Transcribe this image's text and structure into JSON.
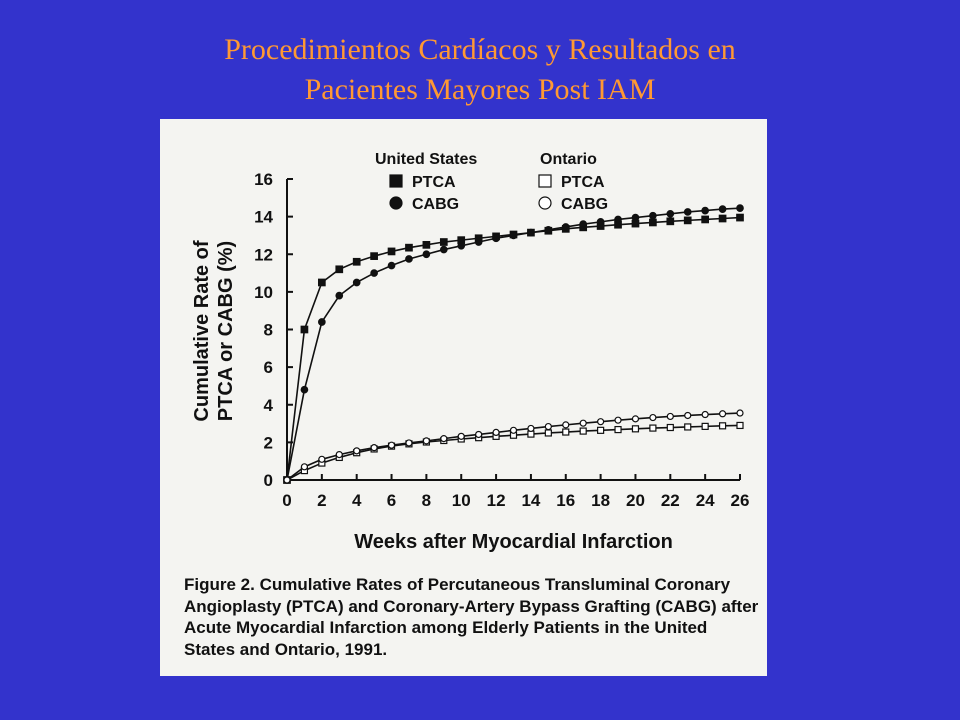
{
  "slide": {
    "title_line1": "Procedimientos Cardíacos y Resultados en",
    "title_line2": "Pacientes Mayores Post IAM"
  },
  "colors": {
    "background": "#3333cc",
    "title": "#ff9933",
    "panel": "#f4f4f1",
    "ink": "#111111"
  },
  "figure": {
    "caption_label": "Figure 2.",
    "caption_text": "Cumulative Rates of Percutaneous Transluminal Coronary Angioplasty (PTCA) and Coronary-Artery Bypass Grafting (CABG) after Acute Myocardial Infarction among Elderly Patients in the United States and Ontario, 1991."
  },
  "chart_data": {
    "type": "line",
    "xlabel": "Weeks after Myocardial Infarction",
    "ylabel_line1": "Cumulative Rate of",
    "ylabel_line2": "PTCA or CABG (%)",
    "xlim": [
      0,
      26
    ],
    "ylim": [
      0,
      16
    ],
    "xticks": [
      0,
      2,
      4,
      6,
      8,
      10,
      12,
      14,
      16,
      18,
      20,
      22,
      24,
      26
    ],
    "yticks": [
      0,
      2,
      4,
      6,
      8,
      10,
      12,
      14,
      16
    ],
    "grid": false,
    "legend": {
      "placement": "top-right",
      "group_us": "United States",
      "group_ontario": "Ontario"
    },
    "x": [
      0,
      1,
      2,
      3,
      4,
      5,
      6,
      7,
      8,
      9,
      10,
      11,
      12,
      13,
      14,
      15,
      16,
      17,
      18,
      19,
      20,
      21,
      22,
      23,
      24,
      25,
      26
    ],
    "series": [
      {
        "name": "PTCA",
        "group": "United States",
        "marker": "square",
        "filled": true,
        "values": [
          0,
          8.0,
          10.5,
          11.2,
          11.6,
          11.9,
          12.15,
          12.35,
          12.5,
          12.65,
          12.75,
          12.85,
          12.95,
          13.05,
          13.15,
          13.25,
          13.35,
          13.43,
          13.5,
          13.57,
          13.63,
          13.69,
          13.75,
          13.8,
          13.85,
          13.9,
          13.95
        ]
      },
      {
        "name": "CABG",
        "group": "United States",
        "marker": "circle",
        "filled": true,
        "values": [
          0,
          4.8,
          8.4,
          9.8,
          10.5,
          11.0,
          11.4,
          11.75,
          12.0,
          12.25,
          12.45,
          12.65,
          12.85,
          13.0,
          13.15,
          13.3,
          13.45,
          13.6,
          13.72,
          13.85,
          13.95,
          14.05,
          14.15,
          14.25,
          14.32,
          14.4,
          14.45
        ]
      },
      {
        "name": "PTCA",
        "group": "Ontario",
        "marker": "square",
        "filled": false,
        "values": [
          0,
          0.5,
          0.9,
          1.2,
          1.45,
          1.65,
          1.8,
          1.92,
          2.02,
          2.1,
          2.18,
          2.25,
          2.32,
          2.38,
          2.44,
          2.5,
          2.55,
          2.6,
          2.64,
          2.68,
          2.72,
          2.76,
          2.79,
          2.82,
          2.85,
          2.88,
          2.9
        ]
      },
      {
        "name": "CABG",
        "group": "Ontario",
        "marker": "circle",
        "filled": false,
        "values": [
          0,
          0.7,
          1.1,
          1.35,
          1.55,
          1.72,
          1.85,
          1.97,
          2.08,
          2.2,
          2.32,
          2.42,
          2.53,
          2.64,
          2.74,
          2.84,
          2.93,
          3.02,
          3.1,
          3.18,
          3.25,
          3.32,
          3.38,
          3.43,
          3.48,
          3.52,
          3.56
        ]
      }
    ]
  }
}
